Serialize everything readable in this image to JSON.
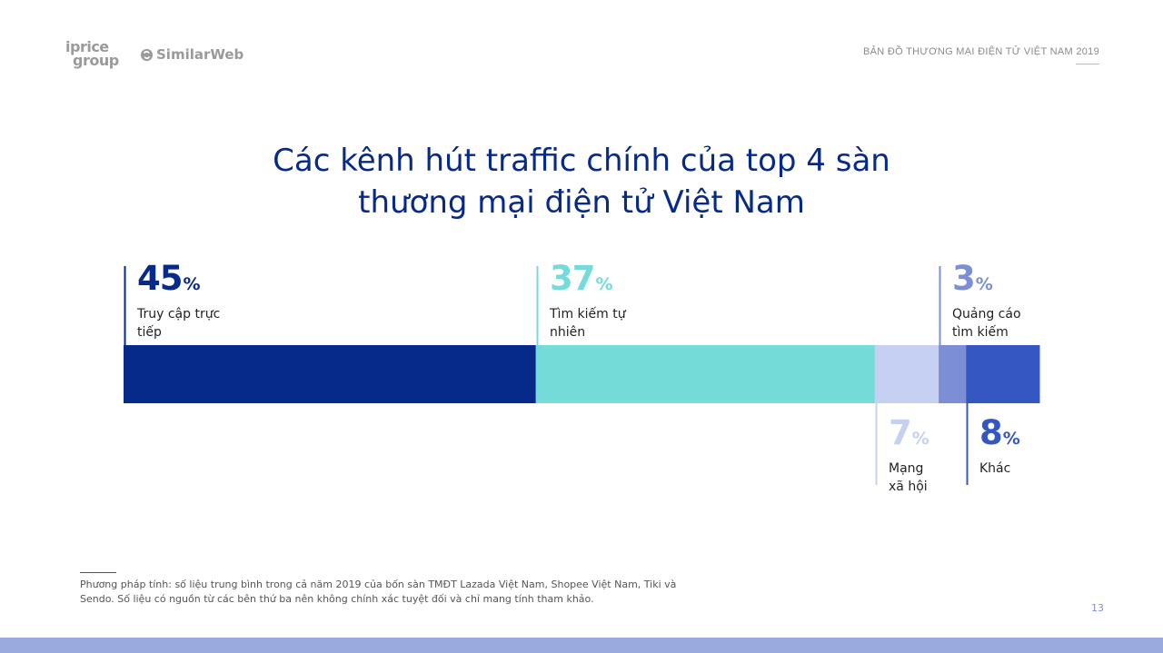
{
  "header": {
    "logo_iprice_line1": "iprice",
    "logo_iprice_line2": "group",
    "logo_similarweb": "SimilarWeb",
    "report_title": "BẢN ĐỒ THƯƠNG MẠI ĐIỆN TỬ VIỆT NAM 2019"
  },
  "title_line1": "Các kênh hút traffic chính của top 4 sàn",
  "title_line2": "thương mại điện tử Việt Nam",
  "chart_data": {
    "type": "bar",
    "orientation": "horizontal-stacked",
    "title": "Các kênh hút traffic chính của top 4 sàn thương mại điện tử Việt Nam",
    "unit": "%",
    "categories": [
      "Truy cập trực tiếp",
      "Tìm kiếm tự nhiên",
      "Mạng xã hội",
      "Quảng cáo tìm kiếm",
      "Khác"
    ],
    "values": [
      45,
      37,
      7,
      3,
      8
    ],
    "colors": [
      "#062a8a",
      "#74dbd9",
      "#c5d0f3",
      "#7c8fd6",
      "#3557c2"
    ],
    "label_text_colors": [
      "#062a8a",
      "#74dbd9",
      "#c5d0f3",
      "#7c8fd6",
      "#3557c2"
    ],
    "label_lines": [
      [
        "Truy cập trực",
        "tiếp"
      ],
      [
        "Tìm kiếm tự",
        "nhiên"
      ],
      [
        "Mạng",
        "xã hội"
      ],
      [
        "Quảng cáo",
        "tìm kiếm"
      ],
      [
        "Khác"
      ]
    ],
    "label_positions": [
      "top",
      "top",
      "bottom",
      "top",
      "bottom"
    ],
    "percent_sign": "%"
  },
  "footnote": "Phương pháp tính: số liệu trung bình trong cả năm 2019 của bốn sàn TMĐT Lazada Việt Nam, Shopee Việt Nam, Tiki và Sendo. Số liệu có nguồn từ các bên thứ ba nên không chính xác tuyệt đối và chỉ mang tính tham khảo.",
  "page_number": "13"
}
